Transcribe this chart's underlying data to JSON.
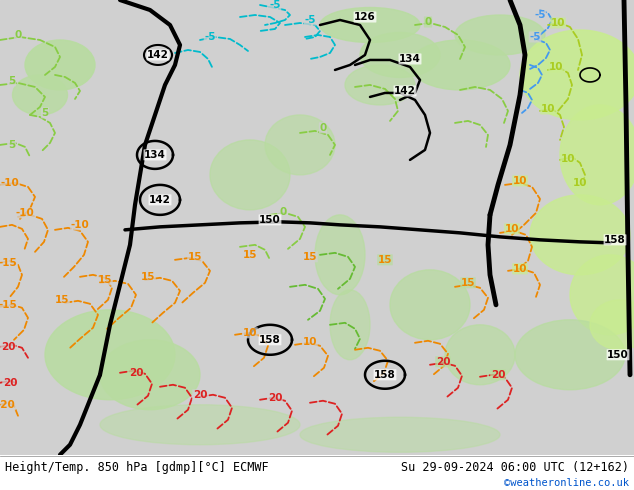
{
  "title_left": "Height/Temp. 850 hPa [gdmp][°C] ECMWF",
  "title_right": "Su 29-09-2024 06:00 UTC (12+162)",
  "credit": "©weatheronline.co.uk",
  "fig_width": 6.34,
  "fig_height": 4.9,
  "dpi": 100,
  "map_bg": "#c8c8c8",
  "land_green": "#b8dca0",
  "land_green_bright": "#c8ec90",
  "gray_land": "#b0b0b0",
  "footer_bg": "#ffffff",
  "black": "#000000",
  "cyan_cold": "#00bbcc",
  "blue_cold": "#4499ee",
  "green_mild": "#88cc44",
  "green_mild2": "#66bb33",
  "orange_warm": "#ee8800",
  "red_hot": "#dd2222",
  "label_fontsize": 7.5,
  "contour_lw": 2.2,
  "temp_lw": 1.3
}
